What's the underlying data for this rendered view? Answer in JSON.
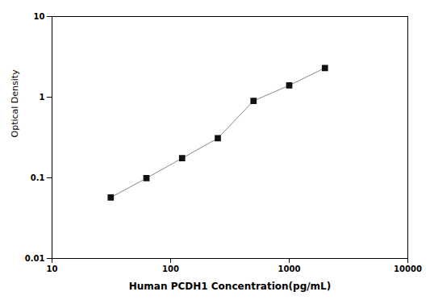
{
  "chart_data": {
    "type": "line",
    "x": [
      31.25,
      62.5,
      125,
      250,
      500,
      1000,
      2000
    ],
    "values": [
      0.057,
      0.099,
      0.175,
      0.31,
      0.9,
      1.4,
      2.3
    ],
    "xlabel": "Human PCDH1 Concentration(pg/mL)",
    "ylabel": "Optical Density",
    "xlim": [
      10,
      10000
    ],
    "ylim": [
      0.01,
      10
    ],
    "xticks": [
      10,
      100,
      1000,
      10000
    ],
    "yticks": [
      0.01,
      0.1,
      1,
      10
    ],
    "log": true,
    "grid": false,
    "color": "#888888",
    "marker": "square"
  }
}
